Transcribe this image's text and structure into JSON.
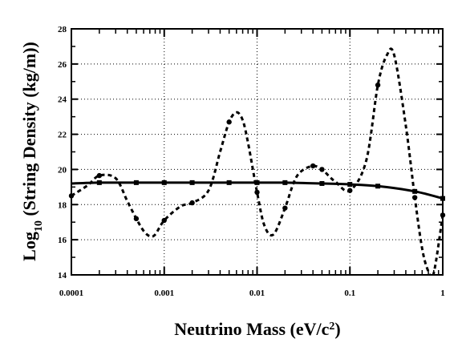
{
  "chart_data": {
    "type": "line",
    "title": "",
    "xlabel_main": "Neutrino Mass (eV/c",
    "xlabel_sup": "2",
    "xlabel_end": ")",
    "ylabel_main": "Log",
    "ylabel_sub": "10",
    "ylabel_end": " (String Density (kg/m))",
    "x_scale": "log",
    "xlim": [
      0.0001,
      1
    ],
    "ylim": [
      14,
      28
    ],
    "grid": true,
    "grid_style": "dotted",
    "x_ticks": [
      {
        "value": 0.0001,
        "label": "0.0001"
      },
      {
        "value": 0.001,
        "label": "0.001"
      },
      {
        "value": 0.01,
        "label": "0.01"
      },
      {
        "value": 0.1,
        "label": "0.1"
      },
      {
        "value": 1,
        "label": "1"
      }
    ],
    "y_ticks": [
      {
        "value": 14,
        "label": "14"
      },
      {
        "value": 16,
        "label": "16"
      },
      {
        "value": 18,
        "label": "18"
      },
      {
        "value": 20,
        "label": "20"
      },
      {
        "value": 22,
        "label": "22"
      },
      {
        "value": 24,
        "label": "24"
      },
      {
        "value": 26,
        "label": "26"
      },
      {
        "value": 28,
        "label": "28"
      }
    ],
    "series": [
      {
        "style": "solid",
        "marker": "square",
        "color": "#000000",
        "x": [
          0.0001,
          0.0002,
          0.0005,
          0.001,
          0.002,
          0.005,
          0.01,
          0.02,
          0.05,
          0.1,
          0.2,
          0.5,
          1
        ],
        "y": [
          19.2,
          19.25,
          19.25,
          19.25,
          19.25,
          19.25,
          19.25,
          19.25,
          19.2,
          19.15,
          19.05,
          18.75,
          18.35
        ],
        "markers_x": [
          0.0002,
          0.0005,
          0.001,
          0.002,
          0.005,
          0.01,
          0.02,
          0.05,
          0.1,
          0.2,
          0.5,
          1
        ],
        "markers_y": [
          19.25,
          19.25,
          19.25,
          19.25,
          19.25,
          19.25,
          19.25,
          19.2,
          19.15,
          19.05,
          18.75,
          18.35
        ]
      },
      {
        "style": "dashed",
        "marker": "circle",
        "color": "#000000",
        "x": [
          0.0001,
          0.00015,
          0.0002,
          0.0003,
          0.0004,
          0.0005,
          0.0006,
          0.0007,
          0.0008,
          0.001,
          0.0015,
          0.002,
          0.003,
          0.004,
          0.005,
          0.006,
          0.007,
          0.008,
          0.01,
          0.012,
          0.015,
          0.02,
          0.025,
          0.03,
          0.04,
          0.05,
          0.06,
          0.07,
          0.1,
          0.15,
          0.2,
          0.25,
          0.3,
          0.4,
          0.5,
          0.6,
          0.7,
          0.8,
          1
        ],
        "y": [
          18.5,
          19.1,
          19.65,
          19.5,
          18.2,
          17.2,
          16.5,
          16.2,
          16.3,
          17.1,
          17.9,
          18.1,
          18.8,
          21.0,
          22.7,
          23.25,
          22.8,
          21.5,
          18.7,
          16.8,
          16.3,
          17.8,
          19.3,
          19.9,
          20.2,
          20.0,
          19.6,
          19.3,
          18.8,
          20.5,
          24.8,
          26.5,
          26.5,
          22.5,
          18.4,
          15.5,
          14.2,
          14.1,
          17.4
        ],
        "markers_x": [
          0.0001,
          0.0002,
          0.0005,
          0.001,
          0.002,
          0.005,
          0.01,
          0.02,
          0.04,
          0.05,
          0.1,
          0.2,
          0.5,
          1
        ],
        "markers_y": [
          18.5,
          19.65,
          17.2,
          17.1,
          18.1,
          22.7,
          18.7,
          17.8,
          20.2,
          20.0,
          18.8,
          24.8,
          18.4,
          17.4
        ]
      }
    ]
  }
}
